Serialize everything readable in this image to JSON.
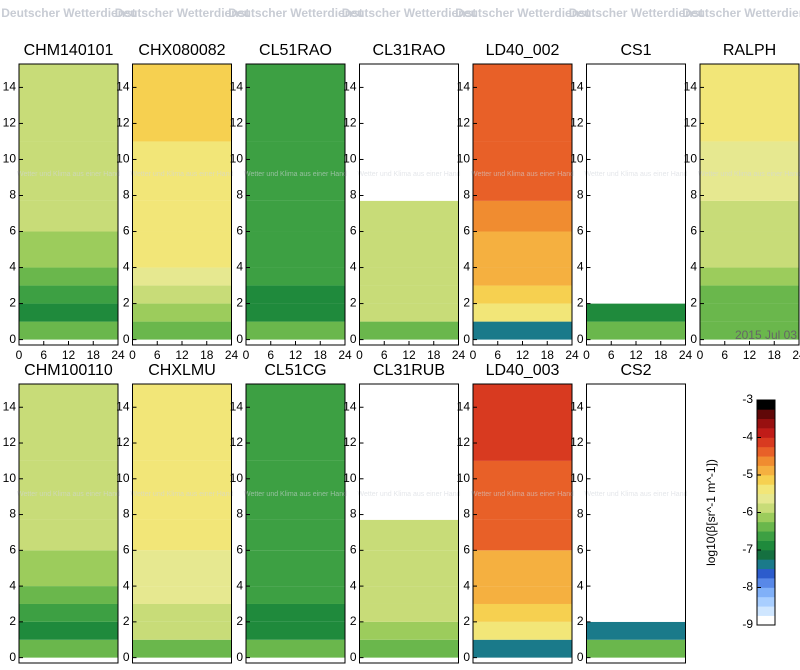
{
  "watermark": {
    "title": "Deutscher Wetterdienst",
    "subtitle": "Wetter und Klima aus einer Hand"
  },
  "chart_data": [
    {
      "type": "heatmap",
      "title": "CHM140101",
      "xlim": [
        0,
        24
      ],
      "xticks": [
        0,
        6,
        12,
        18,
        24
      ],
      "ylim": [
        -0.3,
        15.3
      ],
      "yticks": [
        0,
        2,
        4,
        6,
        8,
        10,
        12,
        14
      ],
      "ybins": [
        0,
        1,
        2,
        3,
        4,
        6,
        7.7,
        11,
        15.3
      ],
      "values": [
        -6.3,
        -6.8,
        -6.6,
        -6.4,
        -6.2,
        -5.9,
        -5.8,
        -5.8
      ]
    },
    {
      "type": "heatmap",
      "title": "CHX080082",
      "xlim": [
        0,
        24
      ],
      "xticks": [
        0,
        6,
        12,
        18,
        24
      ],
      "ylim": [
        -0.3,
        15.3
      ],
      "yticks": [
        0,
        2,
        4,
        6,
        8,
        10,
        12,
        14
      ],
      "ybins": [
        0,
        1,
        2,
        3,
        4,
        6,
        7.7,
        11,
        15.3
      ],
      "values": [
        -6.3,
        -6.1,
        -5.8,
        -5.6,
        -5.4,
        -5.3,
        -5.3,
        -5.2
      ]
    },
    {
      "type": "heatmap",
      "title": "CL51RAO",
      "xlim": [
        0,
        24
      ],
      "xticks": [
        0,
        6,
        12,
        18,
        24
      ],
      "ylim": [
        -0.3,
        15.3
      ],
      "yticks": [
        0,
        2,
        4,
        6,
        8,
        10,
        12,
        14
      ],
      "ybins": [
        0,
        1,
        2,
        3,
        4,
        6,
        7.7,
        11,
        15.3
      ],
      "values": [
        -6.3,
        -6.8,
        -6.8,
        -6.7,
        -6.7,
        -6.6,
        -6.6,
        -6.6
      ]
    },
    {
      "type": "heatmap",
      "title": "CL31RAO",
      "xlim": [
        0,
        24
      ],
      "xticks": [
        0,
        6,
        12,
        18,
        24
      ],
      "ylim": [
        -0.3,
        15.3
      ],
      "yticks": [
        0,
        2,
        4,
        6,
        8,
        10,
        12,
        14
      ],
      "ybins": [
        0,
        1,
        2,
        3,
        4,
        6,
        7.7,
        11,
        15.3
      ],
      "values": [
        -6.3,
        -6.0,
        -5.9,
        -5.9,
        -5.9,
        -5.9,
        null,
        null
      ]
    },
    {
      "type": "heatmap",
      "title": "LD40_002",
      "xlim": [
        0,
        24
      ],
      "xticks": [
        0,
        6,
        12,
        18,
        24
      ],
      "ylim": [
        -0.3,
        15.3
      ],
      "yticks": [
        0,
        2,
        4,
        6,
        8,
        10,
        12,
        14
      ],
      "ybins": [
        0,
        1,
        2,
        3,
        4,
        6,
        7.7,
        11,
        15.3
      ],
      "values": [
        -7.5,
        -5.5,
        -5.2,
        -5.0,
        -4.8,
        -4.6,
        -4.5,
        -4.3
      ]
    },
    {
      "type": "heatmap",
      "title": "CS1",
      "xlim": [
        0,
        24
      ],
      "xticks": [
        0,
        6,
        12,
        18,
        24
      ],
      "ylim": [
        -0.3,
        15.3
      ],
      "yticks": [
        0,
        2,
        4,
        6,
        8,
        10,
        12,
        14
      ],
      "ybins": [
        0,
        1,
        2,
        3,
        4,
        6,
        7.7,
        11,
        15.3
      ],
      "values": [
        -6.3,
        -7.0,
        -8.8,
        -8.8,
        -8.8,
        -8.8,
        null,
        null
      ]
    },
    {
      "type": "heatmap",
      "title": "RALPH",
      "xlim": [
        0,
        24
      ],
      "xticks": [
        0,
        6,
        12,
        18,
        24
      ],
      "ylim": [
        -0.3,
        15.3
      ],
      "yticks": [
        0,
        2,
        4,
        6,
        8,
        10,
        12,
        14
      ],
      "ybins": [
        0,
        1,
        2,
        3,
        4,
        6,
        7.7,
        11,
        15.3
      ],
      "values": [
        -6.5,
        -6.5,
        -6.3,
        -6.2,
        -6.0,
        -5.8,
        -5.6,
        -5.5
      ],
      "annotation": "2015 Jul 03"
    },
    {
      "type": "heatmap",
      "title": "CHM100110",
      "ylim": [
        -0.3,
        15.3
      ],
      "yticks": [
        0,
        2,
        4,
        6,
        8,
        10,
        12,
        14
      ],
      "ybins": [
        0,
        1,
        2,
        3,
        4,
        6,
        7.7,
        11,
        15.3
      ],
      "values": [
        -6.3,
        -6.8,
        -6.6,
        -6.4,
        -6.2,
        -5.9,
        -5.8,
        -5.8
      ]
    },
    {
      "type": "heatmap",
      "title": "CHXLMU",
      "ylim": [
        -0.3,
        15.3
      ],
      "yticks": [
        0,
        2,
        4,
        6,
        8,
        10,
        12,
        14
      ],
      "ybins": [
        0,
        1,
        2,
        3,
        4,
        6,
        7.7,
        11,
        15.3
      ],
      "values": [
        -6.3,
        -6.0,
        -5.8,
        -5.7,
        -5.6,
        -5.5,
        -5.5,
        -5.4
      ]
    },
    {
      "type": "heatmap",
      "title": "CL51CG",
      "ylim": [
        -0.3,
        15.3
      ],
      "yticks": [
        0,
        2,
        4,
        6,
        8,
        10,
        12,
        14
      ],
      "ybins": [
        0,
        1,
        2,
        3,
        4,
        6,
        7.7,
        11,
        15.3
      ],
      "values": [
        -6.3,
        -6.8,
        -6.8,
        -6.7,
        -6.7,
        -6.6,
        -6.6,
        -6.6
      ]
    },
    {
      "type": "heatmap",
      "title": "CL31RUB",
      "ylim": [
        -0.3,
        15.3
      ],
      "yticks": [
        0,
        2,
        4,
        6,
        8,
        10,
        12,
        14
      ],
      "ybins": [
        0,
        1,
        2,
        3,
        4,
        6,
        7.7,
        11,
        15.3
      ],
      "values": [
        -6.3,
        -6.2,
        -6.0,
        -5.9,
        -5.9,
        -5.9,
        null,
        null
      ]
    },
    {
      "type": "heatmap",
      "title": "LD40_003",
      "ylim": [
        -0.3,
        15.3
      ],
      "yticks": [
        0,
        2,
        4,
        6,
        8,
        10,
        12,
        14
      ],
      "ybins": [
        0,
        1,
        2,
        3,
        4,
        6,
        7.7,
        11,
        15.3
      ],
      "values": [
        -7.5,
        -5.5,
        -5.2,
        -5.0,
        -4.8,
        -4.5,
        -4.3,
        -4.1
      ]
    },
    {
      "type": "heatmap",
      "title": "CS2",
      "ylim": [
        -0.3,
        15.3
      ],
      "yticks": [
        0,
        2,
        4,
        6,
        8,
        10,
        12,
        14
      ],
      "ybins": [
        0,
        1,
        2,
        3,
        4,
        6,
        7.7,
        11,
        15.3
      ],
      "values": [
        -6.3,
        -7.5,
        -8.8,
        -8.8,
        -8.8,
        -8.8,
        null,
        null
      ]
    },
    {
      "type": "colorbar",
      "label": "log10(β[sr^-1 m^-1])",
      "ylim": [
        -9,
        -3
      ],
      "yticks": [
        -3,
        -4,
        -5,
        -6,
        -7,
        -8,
        -9
      ],
      "colors": [
        "#ffffff",
        "#cfe6ff",
        "#a8ceff",
        "#80b0f8",
        "#5888e8",
        "#2c5ccc",
        "#1a7a8a",
        "#157040",
        "#1f8a3c",
        "#3da043",
        "#6ab74c",
        "#9ccc5c",
        "#c8dc78",
        "#e6e890",
        "#f2e678",
        "#f6d050",
        "#f5b040",
        "#f08c30",
        "#e86028",
        "#d83a20",
        "#c01c18",
        "#981010",
        "#600808",
        "#000000"
      ]
    }
  ]
}
